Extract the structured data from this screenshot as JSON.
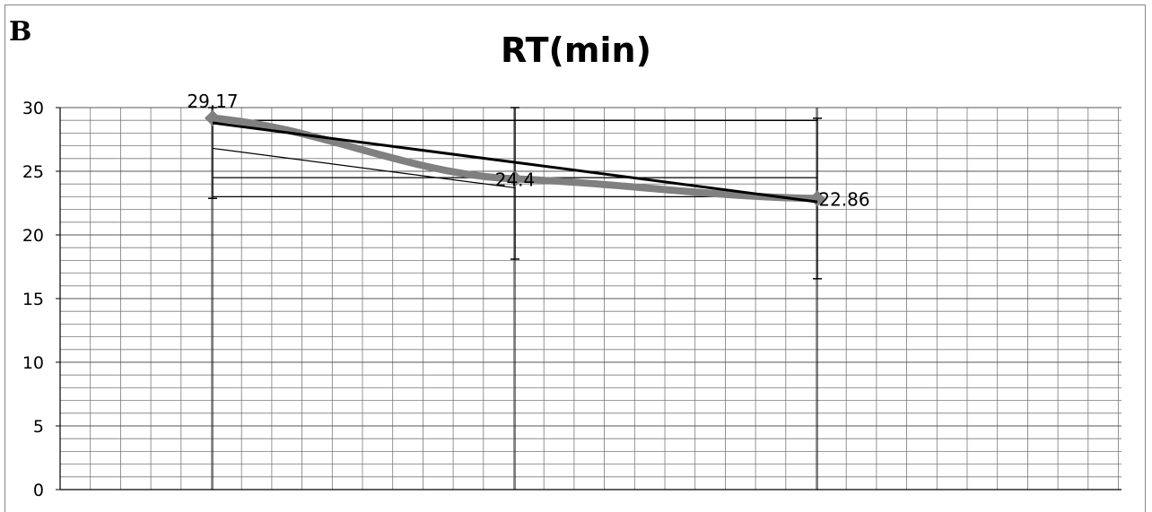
{
  "panel_label": "B",
  "chart_data": {
    "type": "line",
    "title": "RT(min)",
    "xlabel": "",
    "ylabel": "",
    "ylim": [
      0,
      30
    ],
    "yticks": [
      0,
      5,
      10,
      15,
      20,
      25,
      30
    ],
    "grid": true,
    "categories": [
      "",
      "",
      ""
    ],
    "series": [
      {
        "values": [
          29.17,
          24.4,
          22.86
        ],
        "data_labels": [
          "29.17",
          "24.4",
          "22.86"
        ],
        "error": 6.3,
        "color": "#808080"
      }
    ],
    "trendline": {
      "start": 28.8,
      "end": 22.6,
      "color": "#000000"
    },
    "extra_lines": [
      {
        "x": [
          0,
          1
        ],
        "y": [
          26.8,
          23.7
        ]
      },
      {
        "x": [
          0,
          2
        ],
        "y": [
          24.5,
          24.5
        ]
      },
      {
        "x": [
          0,
          2
        ],
        "y": [
          23.0,
          23.0
        ]
      }
    ]
  }
}
